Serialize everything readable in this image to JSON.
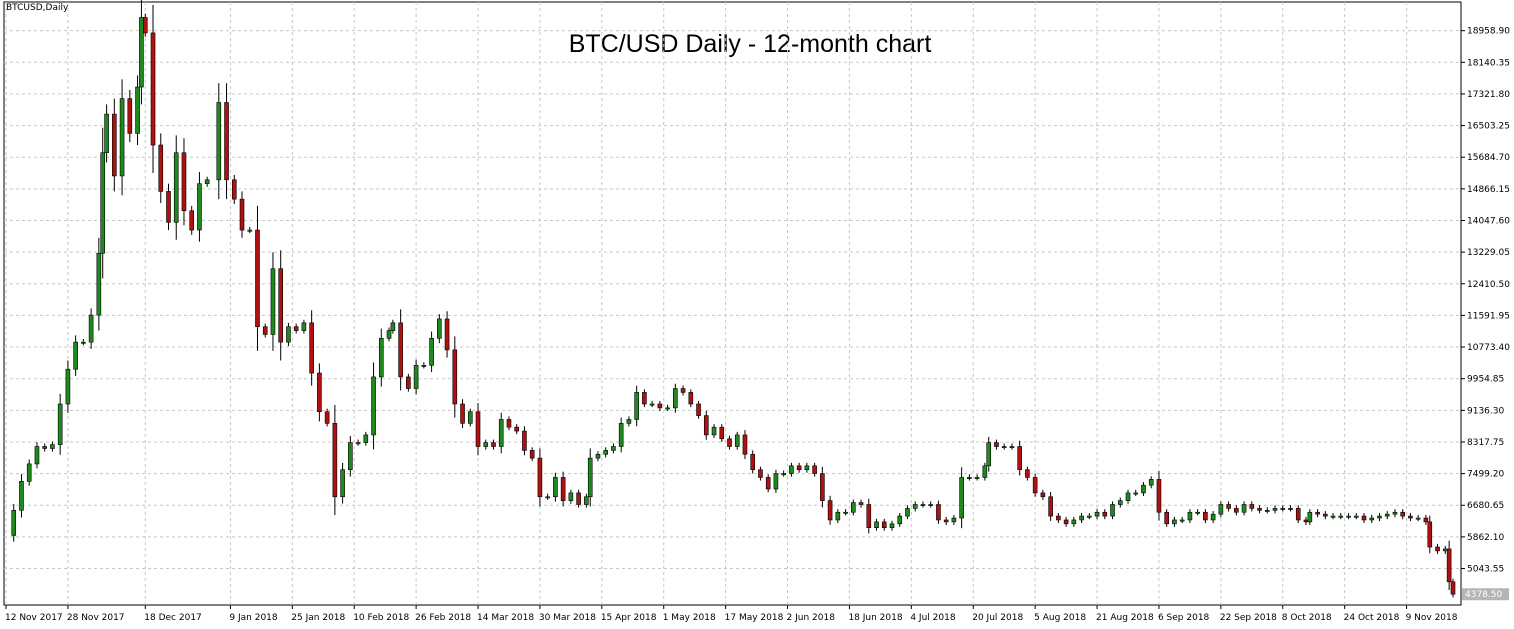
{
  "symbol_label": "BTCUSD,Daily",
  "chart_data": {
    "type": "candlestick",
    "title": "BTC/USD Daily - 12-month chart",
    "ylim": [
      4100,
      19700
    ],
    "y_ticks": [
      5043.55,
      5862.1,
      6680.65,
      7499.2,
      8317.75,
      9136.3,
      9954.85,
      10773.4,
      11591.95,
      12410.5,
      13229.05,
      14047.6,
      14866.15,
      15684.7,
      16503.25,
      17321.8,
      18140.35,
      18958.9
    ],
    "y_tick_labels": [
      "5043.55",
      "5862.10",
      "6680.65",
      "7499.20",
      "8317.75",
      "9136.30",
      "9954.85",
      "10773.40",
      "11591.95",
      "12410.50",
      "13229.05",
      "14047.60",
      "14866.15",
      "15684.70",
      "16503.25",
      "17321.80",
      "18140.35",
      "18958.90"
    ],
    "x_range_days": [
      "12 Nov 2017",
      "21 Nov 2018"
    ],
    "x_tick_labels": [
      {
        "label": "12 Nov 2017",
        "date": "2017-11-12"
      },
      {
        "label": "28 Nov 2017",
        "date": "2017-11-28"
      },
      {
        "label": "18 Dec 2017",
        "date": "2017-12-18"
      },
      {
        "label": "9 Jan 2018",
        "date": "2018-01-09"
      },
      {
        "label": "25 Jan 2018",
        "date": "2018-01-25"
      },
      {
        "label": "10 Feb 2018",
        "date": "2018-02-10"
      },
      {
        "label": "26 Feb 2018",
        "date": "2018-02-26"
      },
      {
        "label": "14 Mar 2018",
        "date": "2018-03-14"
      },
      {
        "label": "30 Mar 2018",
        "date": "2018-03-30"
      },
      {
        "label": "15 Apr 2018",
        "date": "2018-04-15"
      },
      {
        "label": "1 May 2018",
        "date": "2018-05-01"
      },
      {
        "label": "17 May 2018",
        "date": "2018-05-17"
      },
      {
        "label": "2 Jun 2018",
        "date": "2018-06-02"
      },
      {
        "label": "18 Jun 2018",
        "date": "2018-06-18"
      },
      {
        "label": "4 Jul 2018",
        "date": "2018-07-04"
      },
      {
        "label": "20 Jul 2018",
        "date": "2018-07-20"
      },
      {
        "label": "5 Aug 2018",
        "date": "2018-08-05"
      },
      {
        "label": "21 Aug 2018",
        "date": "2018-08-21"
      },
      {
        "label": "6 Sep 2018",
        "date": "2018-09-06"
      },
      {
        "label": "22 Sep 2018",
        "date": "2018-09-22"
      },
      {
        "label": "8 Oct 2018",
        "date": "2018-10-08"
      },
      {
        "label": "24 Oct 2018",
        "date": "2018-10-24"
      },
      {
        "label": "9 Nov 2018",
        "date": "2018-11-09"
      }
    ],
    "close_series": [
      {
        "date": "2017-11-12",
        "close": 5900
      },
      {
        "date": "2017-11-14",
        "close": 6550
      },
      {
        "date": "2017-11-16",
        "close": 7300
      },
      {
        "date": "2017-11-18",
        "close": 7750
      },
      {
        "date": "2017-11-20",
        "close": 8200
      },
      {
        "date": "2017-11-22",
        "close": 8150
      },
      {
        "date": "2017-11-24",
        "close": 8250
      },
      {
        "date": "2017-11-26",
        "close": 9300
      },
      {
        "date": "2017-11-28",
        "close": 10200
      },
      {
        "date": "2017-11-30",
        "close": 10900
      },
      {
        "date": "2017-12-02",
        "close": 10900
      },
      {
        "date": "2017-12-04",
        "close": 11600
      },
      {
        "date": "2017-12-06",
        "close": 13200
      },
      {
        "date": "2017-12-07",
        "close": 15800
      },
      {
        "date": "2017-12-08",
        "close": 16800
      },
      {
        "date": "2017-12-10",
        "close": 15200
      },
      {
        "date": "2017-12-12",
        "close": 17200
      },
      {
        "date": "2017-12-14",
        "close": 16300
      },
      {
        "date": "2017-12-16",
        "close": 17500
      },
      {
        "date": "2017-12-17",
        "close": 19300
      },
      {
        "date": "2017-12-18",
        "close": 18900
      },
      {
        "date": "2017-12-20",
        "close": 16000
      },
      {
        "date": "2017-12-22",
        "close": 14800
      },
      {
        "date": "2017-12-24",
        "close": 14000
      },
      {
        "date": "2017-12-26",
        "close": 15800
      },
      {
        "date": "2017-12-28",
        "close": 14300
      },
      {
        "date": "2017-12-30",
        "close": 13800
      },
      {
        "date": "2018-01-01",
        "close": 15000
      },
      {
        "date": "2018-01-03",
        "close": 15100
      },
      {
        "date": "2018-01-06",
        "close": 17100
      },
      {
        "date": "2018-01-08",
        "close": 15100
      },
      {
        "date": "2018-01-10",
        "close": 14600
      },
      {
        "date": "2018-01-12",
        "close": 13800
      },
      {
        "date": "2018-01-14",
        "close": 13800
      },
      {
        "date": "2018-01-16",
        "close": 11300
      },
      {
        "date": "2018-01-18",
        "close": 11100
      },
      {
        "date": "2018-01-20",
        "close": 12800
      },
      {
        "date": "2018-01-22",
        "close": 10900
      },
      {
        "date": "2018-01-24",
        "close": 11300
      },
      {
        "date": "2018-01-26",
        "close": 11200
      },
      {
        "date": "2018-01-28",
        "close": 11400
      },
      {
        "date": "2018-01-30",
        "close": 10100
      },
      {
        "date": "2018-02-01",
        "close": 9100
      },
      {
        "date": "2018-02-03",
        "close": 8800
      },
      {
        "date": "2018-02-05",
        "close": 6900
      },
      {
        "date": "2018-02-07",
        "close": 7600
      },
      {
        "date": "2018-02-09",
        "close": 8300
      },
      {
        "date": "2018-02-11",
        "close": 8300
      },
      {
        "date": "2018-02-13",
        "close": 8500
      },
      {
        "date": "2018-02-15",
        "close": 10000
      },
      {
        "date": "2018-02-17",
        "close": 11000
      },
      {
        "date": "2018-02-19",
        "close": 11200
      },
      {
        "date": "2018-02-20",
        "close": 11400
      },
      {
        "date": "2018-02-22",
        "close": 10000
      },
      {
        "date": "2018-02-24",
        "close": 9700
      },
      {
        "date": "2018-02-26",
        "close": 10300
      },
      {
        "date": "2018-02-28",
        "close": 10300
      },
      {
        "date": "2018-03-02",
        "close": 11000
      },
      {
        "date": "2018-03-04",
        "close": 11500
      },
      {
        "date": "2018-03-06",
        "close": 10700
      },
      {
        "date": "2018-03-08",
        "close": 9300
      },
      {
        "date": "2018-03-10",
        "close": 8800
      },
      {
        "date": "2018-03-12",
        "close": 9100
      },
      {
        "date": "2018-03-14",
        "close": 8200
      },
      {
        "date": "2018-03-16",
        "close": 8300
      },
      {
        "date": "2018-03-18",
        "close": 8200
      },
      {
        "date": "2018-03-20",
        "close": 8900
      },
      {
        "date": "2018-03-22",
        "close": 8700
      },
      {
        "date": "2018-03-24",
        "close": 8600
      },
      {
        "date": "2018-03-26",
        "close": 8100
      },
      {
        "date": "2018-03-28",
        "close": 7900
      },
      {
        "date": "2018-03-30",
        "close": 6900
      },
      {
        "date": "2018-04-01",
        "close": 6900
      },
      {
        "date": "2018-04-03",
        "close": 7400
      },
      {
        "date": "2018-04-05",
        "close": 6800
      },
      {
        "date": "2018-04-07",
        "close": 7000
      },
      {
        "date": "2018-04-09",
        "close": 6700
      },
      {
        "date": "2018-04-11",
        "close": 6900
      },
      {
        "date": "2018-04-12",
        "close": 7900
      },
      {
        "date": "2018-04-14",
        "close": 8000
      },
      {
        "date": "2018-04-16",
        "close": 8100
      },
      {
        "date": "2018-04-18",
        "close": 8200
      },
      {
        "date": "2018-04-20",
        "close": 8800
      },
      {
        "date": "2018-04-22",
        "close": 8900
      },
      {
        "date": "2018-04-24",
        "close": 9600
      },
      {
        "date": "2018-04-26",
        "close": 9300
      },
      {
        "date": "2018-04-28",
        "close": 9300
      },
      {
        "date": "2018-04-30",
        "close": 9200
      },
      {
        "date": "2018-05-02",
        "close": 9200
      },
      {
        "date": "2018-05-04",
        "close": 9700
      },
      {
        "date": "2018-05-06",
        "close": 9600
      },
      {
        "date": "2018-05-08",
        "close": 9300
      },
      {
        "date": "2018-05-10",
        "close": 9000
      },
      {
        "date": "2018-05-12",
        "close": 8500
      },
      {
        "date": "2018-05-14",
        "close": 8700
      },
      {
        "date": "2018-05-16",
        "close": 8400
      },
      {
        "date": "2018-05-18",
        "close": 8200
      },
      {
        "date": "2018-05-20",
        "close": 8500
      },
      {
        "date": "2018-05-22",
        "close": 8000
      },
      {
        "date": "2018-05-24",
        "close": 7600
      },
      {
        "date": "2018-05-26",
        "close": 7400
      },
      {
        "date": "2018-05-28",
        "close": 7100
      },
      {
        "date": "2018-05-30",
        "close": 7500
      },
      {
        "date": "2018-06-01",
        "close": 7500
      },
      {
        "date": "2018-06-03",
        "close": 7700
      },
      {
        "date": "2018-06-05",
        "close": 7600
      },
      {
        "date": "2018-06-07",
        "close": 7700
      },
      {
        "date": "2018-06-09",
        "close": 7500
      },
      {
        "date": "2018-06-11",
        "close": 6800
      },
      {
        "date": "2018-06-13",
        "close": 6300
      },
      {
        "date": "2018-06-15",
        "close": 6500
      },
      {
        "date": "2018-06-17",
        "close": 6500
      },
      {
        "date": "2018-06-19",
        "close": 6750
      },
      {
        "date": "2018-06-21",
        "close": 6700
      },
      {
        "date": "2018-06-23",
        "close": 6100
      },
      {
        "date": "2018-06-25",
        "close": 6250
      },
      {
        "date": "2018-06-27",
        "close": 6100
      },
      {
        "date": "2018-06-29",
        "close": 6200
      },
      {
        "date": "2018-07-01",
        "close": 6400
      },
      {
        "date": "2018-07-03",
        "close": 6600
      },
      {
        "date": "2018-07-05",
        "close": 6700
      },
      {
        "date": "2018-07-07",
        "close": 6700
      },
      {
        "date": "2018-07-09",
        "close": 6700
      },
      {
        "date": "2018-07-11",
        "close": 6300
      },
      {
        "date": "2018-07-13",
        "close": 6250
      },
      {
        "date": "2018-07-15",
        "close": 6350
      },
      {
        "date": "2018-07-17",
        "close": 7400
      },
      {
        "date": "2018-07-19",
        "close": 7400
      },
      {
        "date": "2018-07-21",
        "close": 7400
      },
      {
        "date": "2018-07-23",
        "close": 7700
      },
      {
        "date": "2018-07-24",
        "close": 8300
      },
      {
        "date": "2018-07-26",
        "close": 8200
      },
      {
        "date": "2018-07-28",
        "close": 8200
      },
      {
        "date": "2018-07-30",
        "close": 8200
      },
      {
        "date": "2018-08-01",
        "close": 7600
      },
      {
        "date": "2018-08-03",
        "close": 7400
      },
      {
        "date": "2018-08-05",
        "close": 7000
      },
      {
        "date": "2018-08-07",
        "close": 6900
      },
      {
        "date": "2018-08-09",
        "close": 6400
      },
      {
        "date": "2018-08-11",
        "close": 6300
      },
      {
        "date": "2018-08-13",
        "close": 6200
      },
      {
        "date": "2018-08-15",
        "close": 6300
      },
      {
        "date": "2018-08-17",
        "close": 6400
      },
      {
        "date": "2018-08-19",
        "close": 6400
      },
      {
        "date": "2018-08-21",
        "close": 6500
      },
      {
        "date": "2018-08-23",
        "close": 6400
      },
      {
        "date": "2018-08-25",
        "close": 6700
      },
      {
        "date": "2018-08-27",
        "close": 6800
      },
      {
        "date": "2018-08-29",
        "close": 7000
      },
      {
        "date": "2018-08-31",
        "close": 7000
      },
      {
        "date": "2018-09-02",
        "close": 7200
      },
      {
        "date": "2018-09-04",
        "close": 7350
      },
      {
        "date": "2018-09-06",
        "close": 6500
      },
      {
        "date": "2018-09-08",
        "close": 6200
      },
      {
        "date": "2018-09-10",
        "close": 6300
      },
      {
        "date": "2018-09-12",
        "close": 6300
      },
      {
        "date": "2018-09-14",
        "close": 6500
      },
      {
        "date": "2018-09-16",
        "close": 6500
      },
      {
        "date": "2018-09-18",
        "close": 6300
      },
      {
        "date": "2018-09-20",
        "close": 6450
      },
      {
        "date": "2018-09-22",
        "close": 6700
      },
      {
        "date": "2018-09-24",
        "close": 6600
      },
      {
        "date": "2018-09-26",
        "close": 6500
      },
      {
        "date": "2018-09-28",
        "close": 6700
      },
      {
        "date": "2018-09-30",
        "close": 6600
      },
      {
        "date": "2018-10-02",
        "close": 6550
      },
      {
        "date": "2018-10-04",
        "close": 6550
      },
      {
        "date": "2018-10-06",
        "close": 6600
      },
      {
        "date": "2018-10-08",
        "close": 6600
      },
      {
        "date": "2018-10-10",
        "close": 6600
      },
      {
        "date": "2018-10-12",
        "close": 6300
      },
      {
        "date": "2018-10-14",
        "close": 6250
      },
      {
        "date": "2018-10-15",
        "close": 6500
      },
      {
        "date": "2018-10-17",
        "close": 6450
      },
      {
        "date": "2018-10-19",
        "close": 6400
      },
      {
        "date": "2018-10-21",
        "close": 6400
      },
      {
        "date": "2018-10-23",
        "close": 6400
      },
      {
        "date": "2018-10-25",
        "close": 6400
      },
      {
        "date": "2018-10-27",
        "close": 6400
      },
      {
        "date": "2018-10-29",
        "close": 6300
      },
      {
        "date": "2018-10-31",
        "close": 6350
      },
      {
        "date": "2018-11-02",
        "close": 6400
      },
      {
        "date": "2018-11-04",
        "close": 6450
      },
      {
        "date": "2018-11-06",
        "close": 6500
      },
      {
        "date": "2018-11-08",
        "close": 6400
      },
      {
        "date": "2018-11-10",
        "close": 6350
      },
      {
        "date": "2018-11-12",
        "close": 6350
      },
      {
        "date": "2018-11-14",
        "close": 6250
      },
      {
        "date": "2018-11-15",
        "close": 5600
      },
      {
        "date": "2018-11-17",
        "close": 5500
      },
      {
        "date": "2018-11-19",
        "close": 5550
      },
      {
        "date": "2018-11-20",
        "close": 4700
      },
      {
        "date": "2018-11-21",
        "close": 4378.5
      }
    ],
    "last_price": 4378.5,
    "last_price_label": "4378.50",
    "bull_color": "#1e8a1e",
    "bear_color": "#b01010",
    "grid": true,
    "grid_color": "#c8c8c8"
  }
}
